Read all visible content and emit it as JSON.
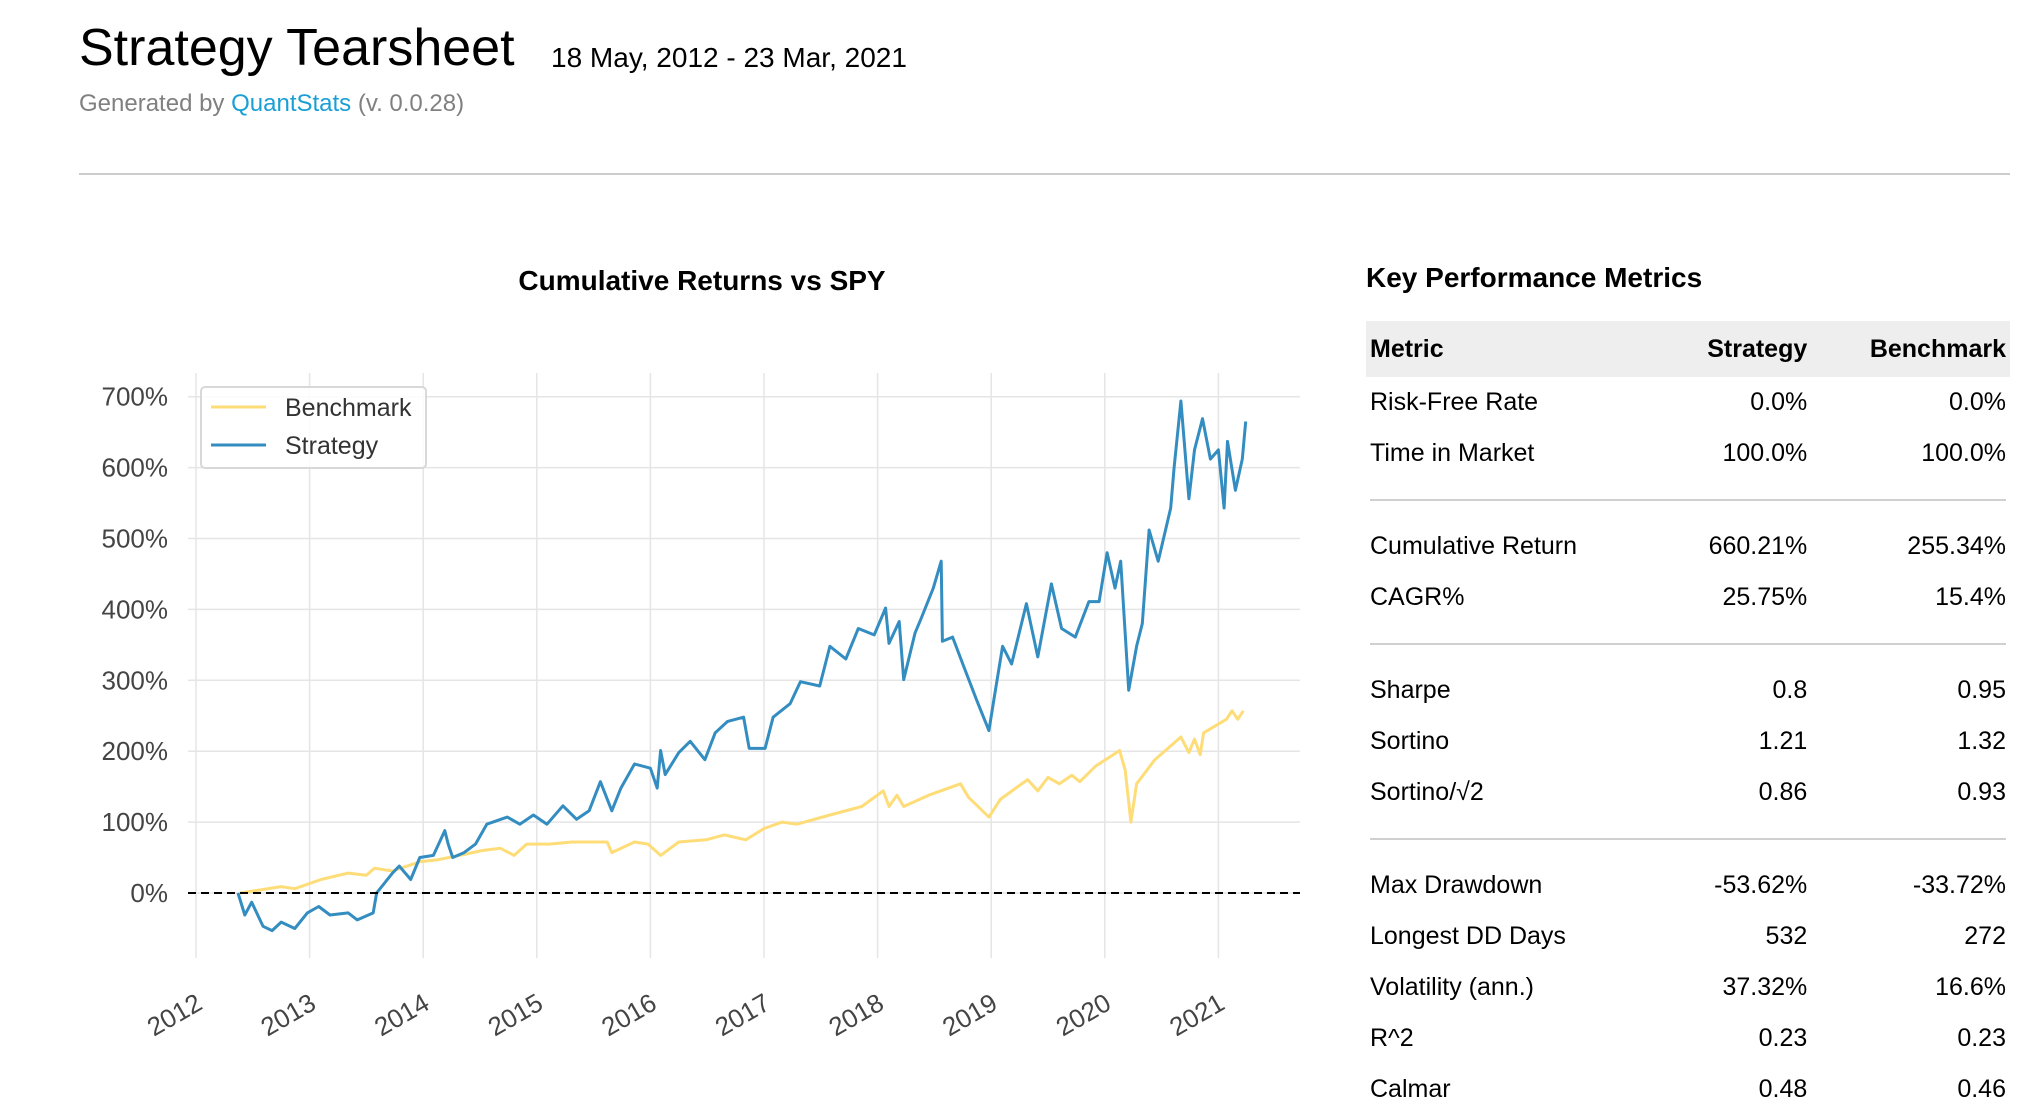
{
  "header": {
    "title": "Strategy Tearsheet",
    "date_range": "18 May, 2012 - 23 Mar, 2021",
    "generated_prefix": "Generated by ",
    "generated_link": "QuantStats",
    "generated_suffix": " (v. 0.0.28)",
    "link_color": "#1a9fd4"
  },
  "metrics": {
    "title": "Key Performance Metrics",
    "columns": [
      "Metric",
      "Strategy",
      "Benchmark"
    ],
    "groups": [
      [
        [
          "Risk-Free Rate",
          "0.0%",
          "0.0%"
        ],
        [
          "Time in Market",
          "100.0%",
          "100.0%"
        ]
      ],
      [
        [
          "Cumulative Return",
          "660.21%",
          "255.34%"
        ],
        [
          "CAGR%",
          "25.75%",
          "15.4%"
        ]
      ],
      [
        [
          "Sharpe",
          "0.8",
          "0.95"
        ],
        [
          "Sortino",
          "1.21",
          "1.32"
        ],
        [
          "Sortino/√2",
          "0.86",
          "0.93"
        ]
      ],
      [
        [
          "Max Drawdown",
          "-53.62%",
          "-33.72%"
        ],
        [
          "Longest DD Days",
          "532",
          "272"
        ],
        [
          "Volatility (ann.)",
          "37.32%",
          "16.6%"
        ],
        [
          "R^2",
          "0.23",
          "0.23"
        ],
        [
          "Calmar",
          "0.48",
          "0.46"
        ]
      ]
    ]
  },
  "chart_data": {
    "type": "line",
    "title": "Cumulative Returns vs SPY",
    "xlabel": "",
    "ylabel": "",
    "xlim": [
      2011.92,
      2021.67
    ],
    "ylim": [
      -90,
      720
    ],
    "x_ticks": [
      "2012",
      "2013",
      "2014",
      "2015",
      "2016",
      "2017",
      "2018",
      "2019",
      "2020",
      "2021"
    ],
    "y_ticks": [
      "0%",
      "100%",
      "200%",
      "300%",
      "400%",
      "500%",
      "600%",
      "700%"
    ],
    "grid": true,
    "legend": "top-left",
    "baseline": 0,
    "series": [
      {
        "name": "Benchmark",
        "color": "#fedd78",
        "points": [
          [
            2012.39,
            0
          ],
          [
            2012.75,
            9
          ],
          [
            2012.87,
            6
          ],
          [
            2013.1,
            19
          ],
          [
            2013.34,
            28
          ],
          [
            2013.5,
            25
          ],
          [
            2013.57,
            35
          ],
          [
            2013.73,
            31
          ],
          [
            2013.97,
            44
          ],
          [
            2014.13,
            47
          ],
          [
            2014.32,
            53
          ],
          [
            2014.52,
            60
          ],
          [
            2014.68,
            63
          ],
          [
            2014.8,
            53
          ],
          [
            2014.91,
            69
          ],
          [
            2015.11,
            69
          ],
          [
            2015.31,
            72
          ],
          [
            2015.62,
            72
          ],
          [
            2015.66,
            57
          ],
          [
            2015.86,
            72
          ],
          [
            2015.98,
            69
          ],
          [
            2016.09,
            53
          ],
          [
            2016.25,
            72
          ],
          [
            2016.49,
            75
          ],
          [
            2016.65,
            82
          ],
          [
            2016.84,
            75
          ],
          [
            2017.0,
            91
          ],
          [
            2017.16,
            100
          ],
          [
            2017.29,
            97
          ],
          [
            2017.58,
            110
          ],
          [
            2017.86,
            122
          ],
          [
            2018.05,
            144
          ],
          [
            2018.1,
            122
          ],
          [
            2018.17,
            138
          ],
          [
            2018.23,
            122
          ],
          [
            2018.45,
            138
          ],
          [
            2018.73,
            154
          ],
          [
            2018.8,
            135
          ],
          [
            2018.98,
            107
          ],
          [
            2019.08,
            132
          ],
          [
            2019.32,
            160
          ],
          [
            2019.41,
            144
          ],
          [
            2019.5,
            163
          ],
          [
            2019.6,
            154
          ],
          [
            2019.71,
            166
          ],
          [
            2019.78,
            157
          ],
          [
            2019.92,
            179
          ],
          [
            2020.13,
            201
          ],
          [
            2020.18,
            173
          ],
          [
            2020.23,
            100
          ],
          [
            2020.28,
            154
          ],
          [
            2020.44,
            188
          ],
          [
            2020.67,
            220
          ],
          [
            2020.74,
            198
          ],
          [
            2020.79,
            217
          ],
          [
            2020.84,
            195
          ],
          [
            2020.87,
            226
          ],
          [
            2021.07,
            245
          ],
          [
            2021.12,
            257
          ],
          [
            2021.17,
            245
          ],
          [
            2021.22,
            257
          ]
        ]
      },
      {
        "name": "Strategy",
        "color": "#348dc1",
        "points": [
          [
            2012.37,
            0
          ],
          [
            2012.43,
            -31
          ],
          [
            2012.49,
            -13
          ],
          [
            2012.59,
            -47
          ],
          [
            2012.67,
            -53
          ],
          [
            2012.75,
            -41
          ],
          [
            2012.87,
            -50
          ],
          [
            2012.98,
            -28
          ],
          [
            2013.08,
            -19
          ],
          [
            2013.18,
            -31
          ],
          [
            2013.34,
            -28
          ],
          [
            2013.42,
            -38
          ],
          [
            2013.56,
            -28
          ],
          [
            2013.59,
            0
          ],
          [
            2013.73,
            28
          ],
          [
            2013.79,
            38
          ],
          [
            2013.89,
            19
          ],
          [
            2013.97,
            50
          ],
          [
            2014.09,
            53
          ],
          [
            2014.19,
            88
          ],
          [
            2014.22,
            69
          ],
          [
            2014.26,
            50
          ],
          [
            2014.36,
            57
          ],
          [
            2014.46,
            69
          ],
          [
            2014.56,
            97
          ],
          [
            2014.74,
            107
          ],
          [
            2014.85,
            97
          ],
          [
            2014.97,
            110
          ],
          [
            2015.09,
            97
          ],
          [
            2015.23,
            123
          ],
          [
            2015.35,
            104
          ],
          [
            2015.46,
            116
          ],
          [
            2015.56,
            157
          ],
          [
            2015.66,
            116
          ],
          [
            2015.74,
            148
          ],
          [
            2015.86,
            182
          ],
          [
            2016.0,
            176
          ],
          [
            2016.06,
            148
          ],
          [
            2016.09,
            201
          ],
          [
            2016.13,
            167
          ],
          [
            2016.25,
            198
          ],
          [
            2016.35,
            214
          ],
          [
            2016.48,
            188
          ],
          [
            2016.57,
            226
          ],
          [
            2016.68,
            242
          ],
          [
            2016.82,
            248
          ],
          [
            2016.87,
            204
          ],
          [
            2017.01,
            204
          ],
          [
            2017.08,
            248
          ],
          [
            2017.23,
            267
          ],
          [
            2017.32,
            298
          ],
          [
            2017.49,
            292
          ],
          [
            2017.58,
            348
          ],
          [
            2017.72,
            330
          ],
          [
            2017.83,
            373
          ],
          [
            2017.97,
            364
          ],
          [
            2018.07,
            402
          ],
          [
            2018.1,
            352
          ],
          [
            2018.19,
            383
          ],
          [
            2018.23,
            301
          ],
          [
            2018.33,
            367
          ],
          [
            2018.38,
            386
          ],
          [
            2018.49,
            430
          ],
          [
            2018.56,
            468
          ],
          [
            2018.57,
            355
          ],
          [
            2018.66,
            361
          ],
          [
            2018.75,
            323
          ],
          [
            2018.87,
            273
          ],
          [
            2018.98,
            229
          ],
          [
            2019.03,
            279
          ],
          [
            2019.1,
            348
          ],
          [
            2019.18,
            323
          ],
          [
            2019.31,
            408
          ],
          [
            2019.41,
            333
          ],
          [
            2019.53,
            436
          ],
          [
            2019.62,
            373
          ],
          [
            2019.74,
            361
          ],
          [
            2019.86,
            411
          ],
          [
            2019.95,
            411
          ],
          [
            2020.02,
            480
          ],
          [
            2020.09,
            430
          ],
          [
            2020.14,
            468
          ],
          [
            2020.21,
            286
          ],
          [
            2020.28,
            348
          ],
          [
            2020.33,
            380
          ],
          [
            2020.39,
            512
          ],
          [
            2020.47,
            468
          ],
          [
            2020.58,
            543
          ],
          [
            2020.61,
            600
          ],
          [
            2020.67,
            694
          ],
          [
            2020.74,
            556
          ],
          [
            2020.79,
            625
          ],
          [
            2020.86,
            669
          ],
          [
            2020.93,
            612
          ],
          [
            2021.0,
            625
          ],
          [
            2021.05,
            543
          ],
          [
            2021.08,
            637
          ],
          [
            2021.15,
            568
          ],
          [
            2021.21,
            612
          ],
          [
            2021.24,
            665
          ]
        ]
      }
    ]
  }
}
